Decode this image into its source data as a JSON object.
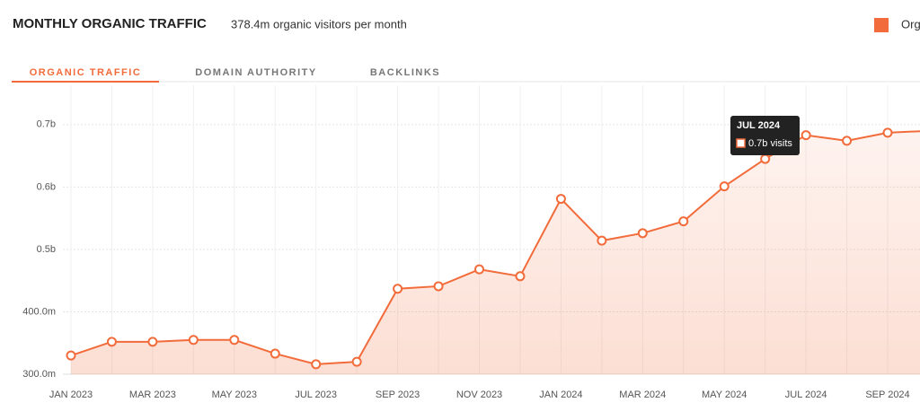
{
  "header": {
    "title": "MONTHLY ORGANIC TRAFFIC",
    "subtitle": "378.4m organic visitors per month"
  },
  "tabs": [
    "ORGANIC TRAFFIC",
    "DOMAIN AUTHORITY",
    "BACKLINKS"
  ],
  "chart_data": {
    "type": "line",
    "categories": [
      "JAN 2023",
      null,
      "MAR 2023",
      null,
      "MAY 2023",
      null,
      "JUL 2023",
      null,
      "SEP 2023",
      null,
      "NOV 2023",
      null,
      "JAN 2024",
      null,
      "MAR 2024",
      null,
      "MAY 2024",
      null,
      "JUL 2024",
      null,
      "SEP 2024",
      null
    ],
    "series": [
      {
        "name": "Org",
        "color": "#f26b3a",
        "values": [
          330,
          352,
          352,
          355,
          355,
          333,
          316,
          320,
          437,
          441,
          468,
          457,
          581,
          514,
          526,
          545,
          601,
          645,
          683,
          674,
          687,
          690
        ]
      }
    ],
    "ylim": [
      300,
      763
    ],
    "yticks": [
      {
        "value": 300,
        "label": "300.0m"
      },
      {
        "value": 400,
        "label": "400.0m"
      },
      {
        "value": 500,
        "label": "0.5b"
      },
      {
        "value": 600,
        "label": "0.6b"
      },
      {
        "value": 700,
        "label": "0.7b"
      }
    ],
    "grid": true,
    "legend": "top-right",
    "tooltip": {
      "title": "JUL 2024",
      "text": "0.7b visits"
    }
  }
}
